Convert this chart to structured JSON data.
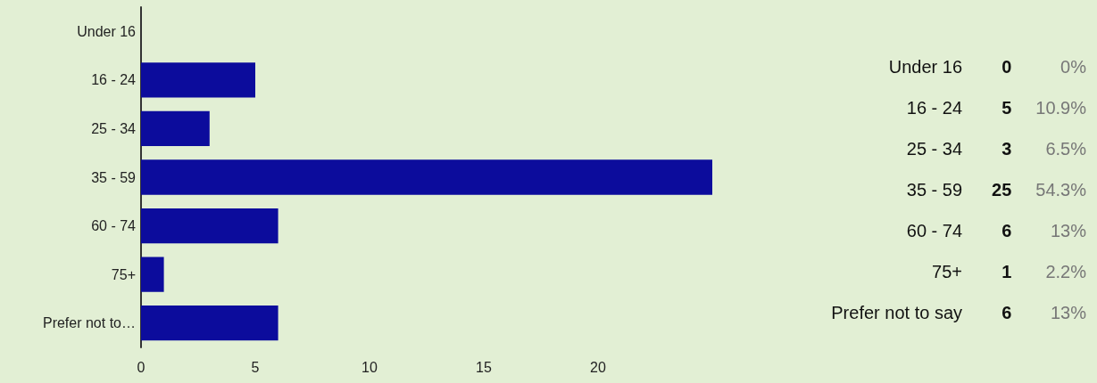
{
  "chart_data": [
    {
      "type": "bar",
      "orientation": "horizontal",
      "categories": [
        "Under 16",
        "16 - 24",
        "25 - 34",
        "35 - 59",
        "60 - 74",
        "75+",
        "Prefer not to…"
      ],
      "values": [
        0,
        5,
        3,
        25,
        6,
        1,
        6
      ],
      "color": "#0c0c9c",
      "xlim": [
        0,
        25
      ],
      "xticks": [
        0,
        5,
        10,
        15,
        20
      ],
      "grid": false
    },
    {
      "type": "other",
      "categories": [
        "Under 16",
        "16 - 24",
        "25 - 34",
        "35 - 59",
        "60 - 74",
        "75+",
        "Prefer not to say"
      ],
      "data_labels": true,
      "series": [
        {
          "values": [
            0,
            5,
            3,
            25,
            6,
            1,
            6
          ]
        },
        {
          "values": [
            0,
            10.9,
            6.5,
            54.3,
            13,
            2.2,
            13
          ],
          "value_labels": [
            "0%",
            "10.9%",
            "6.5%",
            "54.3%",
            "13%",
            "2.2%",
            "13%"
          ]
        }
      ]
    }
  ]
}
